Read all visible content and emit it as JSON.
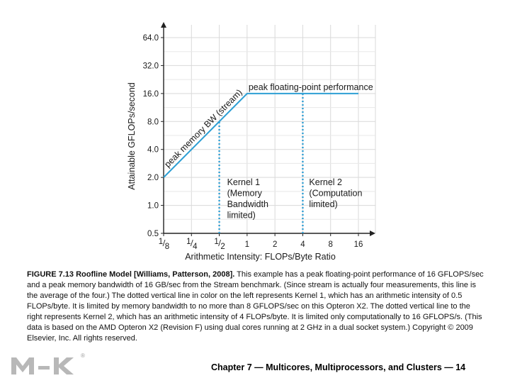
{
  "chart_data": {
    "type": "line",
    "x_scale": "log2",
    "y_scale": "log2",
    "xlabel": "Arithmetic Intensity: FLOPs/Byte Ratio",
    "ylabel": "Attainable GFLOPs/second",
    "x_ticks": [
      0.125,
      0.25,
      0.5,
      1,
      2,
      4,
      8,
      16
    ],
    "x_tick_labels": [
      {
        "num": "1",
        "den": "8"
      },
      {
        "num": "1",
        "den": "4"
      },
      {
        "num": "1",
        "den": "2"
      },
      {
        "num": "1",
        "den": ""
      },
      {
        "num": "2",
        "den": ""
      },
      {
        "num": "4",
        "den": ""
      },
      {
        "num": "8",
        "den": ""
      },
      {
        "num": "16",
        "den": ""
      }
    ],
    "y_ticks": [
      0.5,
      1.0,
      2.0,
      4.0,
      8.0,
      16.0,
      32.0,
      64.0
    ],
    "y_tick_labels": [
      "0.5",
      "1.0",
      "2.0",
      "4.0",
      "8.0",
      "16.0",
      "32.0",
      "64.0"
    ],
    "xlim": [
      0.125,
      16
    ],
    "ylim": [
      0.5,
      64
    ],
    "grid": true,
    "series": [
      {
        "points": [
          [
            0.125,
            2.0
          ],
          [
            1,
            16.0
          ],
          [
            16,
            16.0
          ]
        ],
        "color": "#2e9fd4"
      }
    ],
    "vertical_markers": [
      {
        "x": 0.5,
        "y_top": 8.0,
        "color": "#2e9fd4",
        "style": "dotted"
      },
      {
        "x": 4,
        "y_top": 16.0,
        "color": "#2e9fd4",
        "style": "dotted"
      }
    ],
    "annotations": {
      "bandwidth": "peak memory BW (stream)",
      "peak": "peak floating-point performance",
      "kernel1": [
        "Kernel 1",
        "(Memory",
        "Bandwidth",
        "limited)"
      ],
      "kernel2": [
        "Kernel 2",
        "(Computation",
        "limited)"
      ]
    }
  },
  "caption": {
    "bold": "FIGURE 7.13 Roofline Model [Williams, Patterson, 2008].",
    "text": " This example has a peak floating-point performance of 16 GFLOPS/sec and a peak memory bandwidth of 16 GB/sec from the Stream benchmark. (Since stream is actually four measurements, this line is the average of the four.) The dotted vertical line in color on the left represents Kernel 1, which has an arithmetic intensity of 0.5 FLOPs/byte. It is limited by memory bandwidth to no more than 8 GFLOPS/sec on this Opteron X2. The dotted vertical line to the right represents Kernel 2, which has an arithmetic intensity of 4 FLOPs/byte. It is limited only computationally to 16 GFLOPS/s. (This data is based on the AMD Opteron X2 (Revision F) using dual cores running at 2 GHz in a dual socket system.) Copyright © 2009 Elsevier, Inc. All rights reserved."
  },
  "footer": "Chapter 7 — Multicores, Multiprocessors, and Clusters — 14",
  "logo": {
    "label": "MK",
    "mark": "®"
  }
}
